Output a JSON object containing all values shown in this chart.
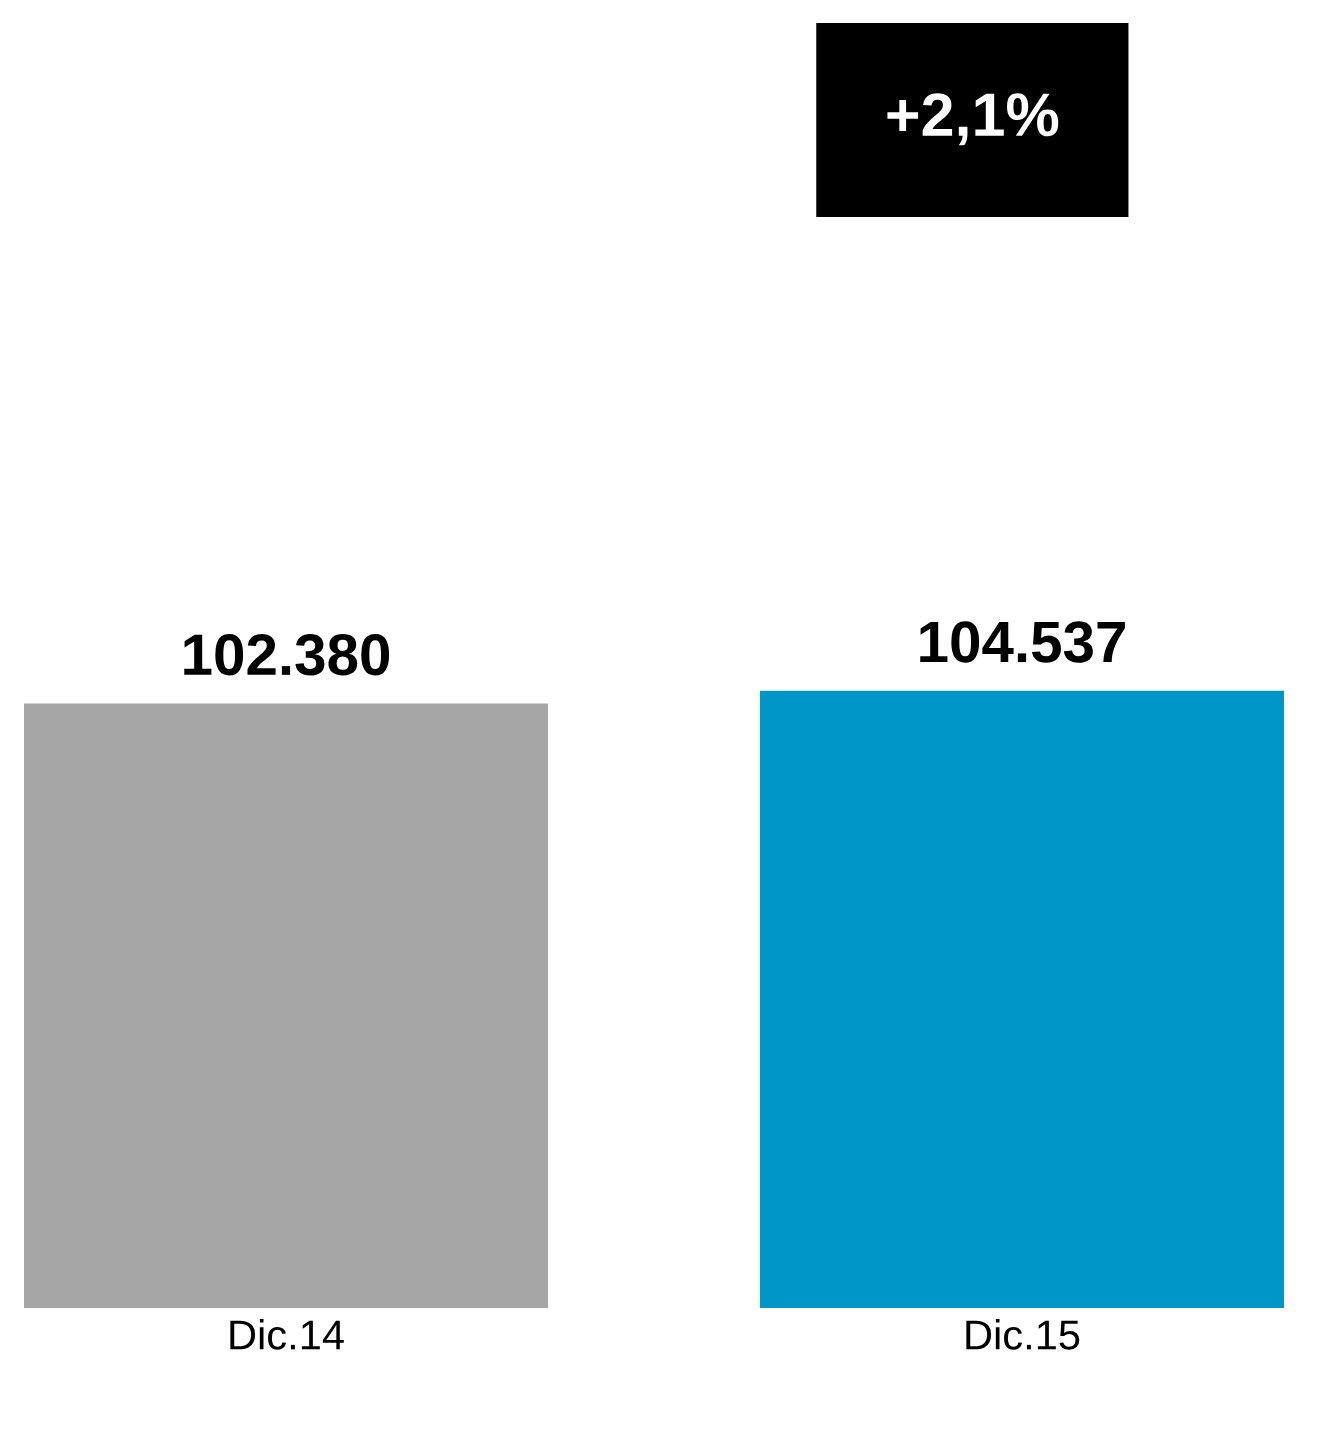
{
  "chart_data": {
    "type": "bar",
    "categories": [
      "Dic.14",
      "Dic.15"
    ],
    "values": [
      102380,
      104537
    ],
    "colors": [
      "#a6a6a6",
      "#0096c8"
    ],
    "value_labels": [
      "102.380",
      "104.537"
    ],
    "tick_labels": "x",
    "grid": false,
    "legend": false,
    "annotations": [
      "+2,1%"
    ]
  }
}
